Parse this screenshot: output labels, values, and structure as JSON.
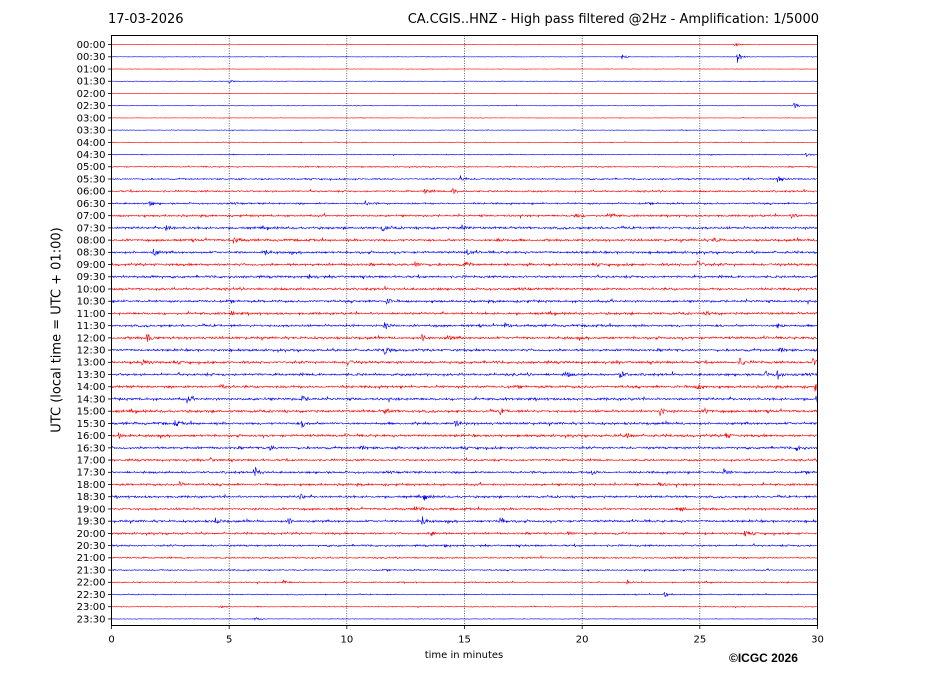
{
  "header": {
    "date": "17-03-2026",
    "title": "CA.CGIS..HNZ - High pass filtered @2Hz - Amplification: 1/5000"
  },
  "footer": {
    "copyright": "©ICGC 2026"
  },
  "colors": {
    "trace_red": "#ff0000",
    "trace_blue": "#0000ff",
    "grid": "#000000"
  },
  "chart_data": {
    "type": "line",
    "title": "CA.CGIS..HNZ - High pass filtered @2Hz - Amplification: 1/5000",
    "xlabel": "time in minutes",
    "ylabel": "UTC (local time = UTC + 01:00)",
    "xlim": [
      0,
      30
    ],
    "x_ticks": [
      "0",
      "5",
      "10",
      "15",
      "20",
      "25",
      "30"
    ],
    "vertical_grid_at": [
      5,
      10,
      15,
      20,
      25
    ],
    "grid": "vertical dotted",
    "row_labels": [
      "00:00",
      "00:30",
      "01:00",
      "01:30",
      "02:00",
      "02:30",
      "03:00",
      "03:30",
      "04:00",
      "04:30",
      "05:00",
      "05:30",
      "06:00",
      "06:30",
      "07:00",
      "07:30",
      "08:00",
      "08:30",
      "09:00",
      "09:30",
      "10:00",
      "10:30",
      "11:00",
      "11:30",
      "12:00",
      "12:30",
      "13:00",
      "13:30",
      "14:00",
      "14:30",
      "15:00",
      "15:30",
      "16:00",
      "16:30",
      "17:00",
      "17:30",
      "18:00",
      "18:30",
      "19:00",
      "19:30",
      "20:00",
      "20:30",
      "21:00",
      "21:30",
      "22:00",
      "22:30",
      "23:00",
      "23:30"
    ],
    "row_colors": "alternating red / blue starting with red at 00:00",
    "noise_level": [
      0.3,
      0.3,
      0.3,
      0.4,
      0.3,
      0.4,
      0.3,
      0.4,
      0.5,
      0.6,
      0.8,
      1,
      1.2,
      1.2,
      1.4,
      1.6,
      1.6,
      1.6,
      1.7,
      1.6,
      1.6,
      1.6,
      1.6,
      1.6,
      1.7,
      1.6,
      1.7,
      1.7,
      1.7,
      1.7,
      1.7,
      1.7,
      1.7,
      1.6,
      1.4,
      1.5,
      1.5,
      1.5,
      1.5,
      1.6,
      1.4,
      1.3,
      1,
      0.9,
      0.8,
      0.7,
      0.6,
      0.4
    ],
    "events": [
      {
        "row": "00:00",
        "minute": 26.5,
        "amp": 2
      },
      {
        "row": "00:30",
        "minute": 21.7,
        "amp": 3
      },
      {
        "row": "00:30",
        "minute": 26.6,
        "amp": 6
      },
      {
        "row": "01:30",
        "minute": 5.0,
        "amp": 2
      },
      {
        "row": "02:30",
        "minute": 29.0,
        "amp": 3
      },
      {
        "row": "04:30",
        "minute": 29.5,
        "amp": 2
      },
      {
        "row": "05:30",
        "minute": 14.8,
        "amp": 4
      },
      {
        "row": "05:30",
        "minute": 28.3,
        "amp": 3
      },
      {
        "row": "06:00",
        "minute": 13.3,
        "amp": 3
      },
      {
        "row": "06:00",
        "minute": 14.5,
        "amp": 3
      },
      {
        "row": "06:30",
        "minute": 1.6,
        "amp": 3
      },
      {
        "row": "06:30",
        "minute": 10.8,
        "amp": 2
      },
      {
        "row": "07:00",
        "minute": 19.7,
        "amp": 3
      },
      {
        "row": "07:00",
        "minute": 21.2,
        "amp": 3
      },
      {
        "row": "07:00",
        "minute": 28.9,
        "amp": 3
      },
      {
        "row": "07:30",
        "minute": 2.3,
        "amp": 3
      },
      {
        "row": "07:30",
        "minute": 11.5,
        "amp": 3
      },
      {
        "row": "07:30",
        "minute": 14.9,
        "amp": 3
      },
      {
        "row": "08:00",
        "minute": 5.2,
        "amp": 4
      },
      {
        "row": "08:00",
        "minute": 16.4,
        "amp": 3
      },
      {
        "row": "08:00",
        "minute": 25.6,
        "amp": 3
      },
      {
        "row": "08:30",
        "minute": 1.8,
        "amp": 4
      },
      {
        "row": "08:30",
        "minute": 6.5,
        "amp": 3
      },
      {
        "row": "08:30",
        "minute": 15.1,
        "amp": 3
      },
      {
        "row": "09:00",
        "minute": 12.9,
        "amp": 3
      },
      {
        "row": "09:00",
        "minute": 15.0,
        "amp": 3
      },
      {
        "row": "09:00",
        "minute": 24.9,
        "amp": 4
      },
      {
        "row": "09:30",
        "minute": 1.6,
        "amp": 2
      },
      {
        "row": "09:30",
        "minute": 8.4,
        "amp": 2
      },
      {
        "row": "10:30",
        "minute": 11.7,
        "amp": 3
      },
      {
        "row": "11:00",
        "minute": 5.1,
        "amp": 2
      },
      {
        "row": "11:00",
        "minute": 25.3,
        "amp": 2
      },
      {
        "row": "11:30",
        "minute": 11.6,
        "amp": 3
      },
      {
        "row": "11:30",
        "minute": 16.7,
        "amp": 3
      },
      {
        "row": "11:30",
        "minute": 28.3,
        "amp": 3
      },
      {
        "row": "12:00",
        "minute": 1.5,
        "amp": 5
      },
      {
        "row": "12:00",
        "minute": 13.2,
        "amp": 4
      },
      {
        "row": "12:00",
        "minute": 14.3,
        "amp": 3
      },
      {
        "row": "12:30",
        "minute": 11.6,
        "amp": 6
      },
      {
        "row": "12:30",
        "minute": 28.4,
        "amp": 4
      },
      {
        "row": "13:00",
        "minute": 1.3,
        "amp": 4
      },
      {
        "row": "13:00",
        "minute": 10.0,
        "amp": 3
      },
      {
        "row": "13:00",
        "minute": 26.7,
        "amp": 4
      },
      {
        "row": "13:00",
        "minute": 29.8,
        "amp": 4
      },
      {
        "row": "13:30",
        "minute": 19.3,
        "amp": 3
      },
      {
        "row": "13:30",
        "minute": 21.6,
        "amp": 4
      },
      {
        "row": "13:30",
        "minute": 27.8,
        "amp": 3
      },
      {
        "row": "13:30",
        "minute": 28.3,
        "amp": 4
      },
      {
        "row": "14:00",
        "minute": 4.6,
        "amp": 3
      },
      {
        "row": "14:00",
        "minute": 24.9,
        "amp": 3
      },
      {
        "row": "14:00",
        "minute": 29.9,
        "amp": 4
      },
      {
        "row": "14:30",
        "minute": 3.2,
        "amp": 3
      },
      {
        "row": "14:30",
        "minute": 8.1,
        "amp": 3
      },
      {
        "row": "14:30",
        "minute": 29.9,
        "amp": 4
      },
      {
        "row": "15:00",
        "minute": 11.6,
        "amp": 3
      },
      {
        "row": "15:00",
        "minute": 16.5,
        "amp": 3
      },
      {
        "row": "15:00",
        "minute": 23.3,
        "amp": 4
      },
      {
        "row": "15:00",
        "minute": 25.2,
        "amp": 3
      },
      {
        "row": "15:30",
        "minute": 2.7,
        "amp": 3
      },
      {
        "row": "15:30",
        "minute": 8.1,
        "amp": 4
      },
      {
        "row": "15:30",
        "minute": 14.6,
        "amp": 3
      },
      {
        "row": "16:00",
        "minute": 0.3,
        "amp": 3
      },
      {
        "row": "16:00",
        "minute": 21.9,
        "amp": 3
      },
      {
        "row": "16:00",
        "minute": 26.1,
        "amp": 3
      },
      {
        "row": "16:30",
        "minute": 6.7,
        "amp": 3
      },
      {
        "row": "16:30",
        "minute": 10.6,
        "amp": 3
      },
      {
        "row": "16:30",
        "minute": 29.1,
        "amp": 3
      },
      {
        "row": "17:00",
        "minute": 4.2,
        "amp": 2
      },
      {
        "row": "17:30",
        "minute": 6.1,
        "amp": 5
      },
      {
        "row": "17:30",
        "minute": 20.4,
        "amp": 3
      },
      {
        "row": "17:30",
        "minute": 26.0,
        "amp": 3
      },
      {
        "row": "18:00",
        "minute": 2.9,
        "amp": 3
      },
      {
        "row": "18:00",
        "minute": 23.2,
        "amp": 3
      },
      {
        "row": "18:30",
        "minute": 8.0,
        "amp": 3
      },
      {
        "row": "18:30",
        "minute": 13.3,
        "amp": 3
      },
      {
        "row": "19:00",
        "minute": 12.9,
        "amp": 3
      },
      {
        "row": "19:00",
        "minute": 24.2,
        "amp": 3
      },
      {
        "row": "19:30",
        "minute": 4.4,
        "amp": 3
      },
      {
        "row": "19:30",
        "minute": 7.5,
        "amp": 3
      },
      {
        "row": "19:30",
        "minute": 13.2,
        "amp": 5
      },
      {
        "row": "19:30",
        "minute": 16.5,
        "amp": 4
      },
      {
        "row": "20:00",
        "minute": 13.6,
        "amp": 3
      },
      {
        "row": "20:00",
        "minute": 19.4,
        "amp": 3
      },
      {
        "row": "20:00",
        "minute": 26.9,
        "amp": 3
      },
      {
        "row": "20:30",
        "minute": 14.1,
        "amp": 2
      },
      {
        "row": "22:00",
        "minute": 7.3,
        "amp": 2
      },
      {
        "row": "22:00",
        "minute": 21.9,
        "amp": 2
      },
      {
        "row": "22:30",
        "minute": 23.5,
        "amp": 3
      },
      {
        "row": "23:00",
        "minute": 4.6,
        "amp": 2
      },
      {
        "row": "23:30",
        "minute": 6.1,
        "amp": 2
      }
    ]
  }
}
